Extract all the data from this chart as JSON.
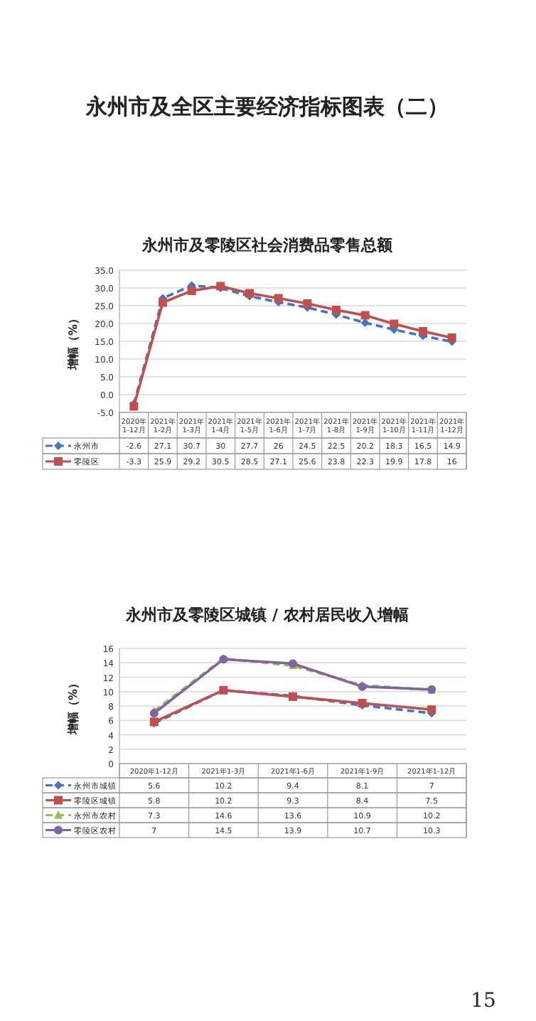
{
  "chart_data": [
    {
      "type": "line",
      "title": "永州市及零陵区社会消费品零售总额",
      "ylabel": "增幅（%）",
      "annotations": [
        "永州市及全区主要经济指标图表（二）"
      ],
      "categories": [
        "2020年\n1-12月",
        "2021年\n1-2月",
        "2021年\n1-3月",
        "2021年\n1-4月",
        "2021年\n1-5月",
        "2021年\n1-6月",
        "2021年\n1-7月",
        "2021年\n1-8月",
        "2021年\n1-9月",
        "2021年\n1-10月",
        "2021年\n1-11月",
        "2021年\n1-12月"
      ],
      "series": [
        {
          "name": "永州市",
          "color": "#4472c4",
          "marker": "diamond",
          "line_style": "dashed",
          "values": [
            -2.6,
            27.1,
            30.7,
            30,
            27.7,
            26,
            24.5,
            22.5,
            20.2,
            18.3,
            16.5,
            14.9
          ]
        },
        {
          "name": "零陵区",
          "color": "#c0504d",
          "marker": "square",
          "line_style": "solid",
          "values": [
            -3.3,
            25.9,
            29.2,
            30.5,
            28.5,
            27.1,
            25.6,
            23.8,
            22.3,
            19.9,
            17.8,
            16
          ]
        }
      ],
      "ylim": [
        -5,
        35
      ],
      "yticks": [
        {
          "value": -5,
          "label": "-5.0"
        },
        {
          "value": 0,
          "label": "0.0"
        },
        {
          "value": 5,
          "label": "5.0"
        },
        {
          "value": 10,
          "label": "10.0"
        },
        {
          "value": 15,
          "label": "15.0"
        },
        {
          "value": 20,
          "label": "20.0"
        },
        {
          "value": 25,
          "label": "25.0"
        },
        {
          "value": 30,
          "label": "30.0"
        },
        {
          "value": 35,
          "label": "35.0"
        }
      ],
      "grid": "y",
      "legend": "bottom",
      "data_labels": true
    },
    {
      "type": "line",
      "title": "永州市及零陵区城镇 / 农村居民收入增幅",
      "ylabel": "增幅（%）",
      "annotations": [
        "15"
      ],
      "categories": [
        "2020年1-12月",
        "2021年1-3月",
        "2021年1-6月",
        "2021年1-9月",
        "2021年1-12月"
      ],
      "series": [
        {
          "name": "永州市城镇",
          "color": "#4472c4",
          "marker": "diamond",
          "line_style": "dashed",
          "values": [
            5.6,
            10.2,
            9.4,
            8.1,
            7
          ]
        },
        {
          "name": "零陵区城镇",
          "color": "#c0504d",
          "marker": "square",
          "line_style": "solid",
          "values": [
            5.8,
            10.2,
            9.3,
            8.4,
            7.5
          ]
        },
        {
          "name": "永州市农村",
          "color": "#9bbb59",
          "marker": "triangle",
          "line_style": "dashed",
          "values": [
            7.3,
            14.6,
            13.6,
            10.9,
            10.2
          ]
        },
        {
          "name": "零陵区农村",
          "color": "#8064a2",
          "marker": "circle",
          "line_style": "solid",
          "values": [
            7,
            14.5,
            13.9,
            10.7,
            10.3
          ]
        }
      ],
      "ylim": [
        0,
        16
      ],
      "yticks": [
        0,
        2,
        4,
        6,
        8,
        10,
        12,
        14,
        16
      ],
      "grid": "y",
      "legend": "bottom",
      "data_labels": true
    }
  ]
}
